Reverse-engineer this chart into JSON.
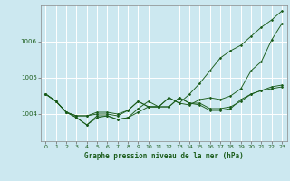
{
  "title": "Graphe pression niveau de la mer (hPa)",
  "background_color": "#cce8f0",
  "line_color": "#1a5c1a",
  "grid_color": "#ffffff",
  "x_ticks": [
    0,
    1,
    2,
    3,
    4,
    5,
    6,
    7,
    8,
    9,
    10,
    11,
    12,
    13,
    14,
    15,
    16,
    17,
    18,
    19,
    20,
    21,
    22,
    23
  ],
  "y_ticks": [
    1004,
    1005,
    1006
  ],
  "ylim": [
    1003.25,
    1007.0
  ],
  "xlim": [
    -0.5,
    23.5
  ],
  "series": [
    [
      1004.55,
      1004.35,
      1004.05,
      1003.9,
      1003.7,
      1003.95,
      1003.95,
      1003.85,
      1003.9,
      1004.05,
      1004.2,
      1004.2,
      1004.2,
      1004.45,
      1004.3,
      1004.3,
      1004.15,
      1004.15,
      1004.2,
      1004.35,
      1004.55,
      1004.65,
      1004.7,
      1004.75
    ],
    [
      1004.55,
      1004.35,
      1004.05,
      1003.9,
      1003.7,
      1003.9,
      1003.95,
      1003.85,
      1003.9,
      1004.15,
      1004.35,
      1004.2,
      1004.2,
      1004.45,
      1004.3,
      1004.25,
      1004.1,
      1004.1,
      1004.15,
      1004.4,
      1004.55,
      1004.65,
      1004.75,
      1004.8
    ],
    [
      1004.55,
      1004.35,
      1004.05,
      1003.95,
      1003.95,
      1004.0,
      1004.0,
      1003.95,
      1004.1,
      1004.35,
      1004.2,
      1004.2,
      1004.45,
      1004.3,
      1004.25,
      1004.4,
      1004.45,
      1004.4,
      1004.5,
      1004.7,
      1005.2,
      1005.45,
      1006.05,
      1006.5
    ],
    [
      1004.55,
      1004.35,
      1004.05,
      1003.95,
      1003.95,
      1004.05,
      1004.05,
      1004.0,
      1004.1,
      1004.35,
      1004.2,
      1004.2,
      1004.45,
      1004.3,
      1004.55,
      1004.85,
      1005.2,
      1005.55,
      1005.75,
      1005.9,
      1006.15,
      1006.4,
      1006.6,
      1006.85
    ]
  ],
  "figsize": [
    3.2,
    2.0
  ],
  "dpi": 100
}
